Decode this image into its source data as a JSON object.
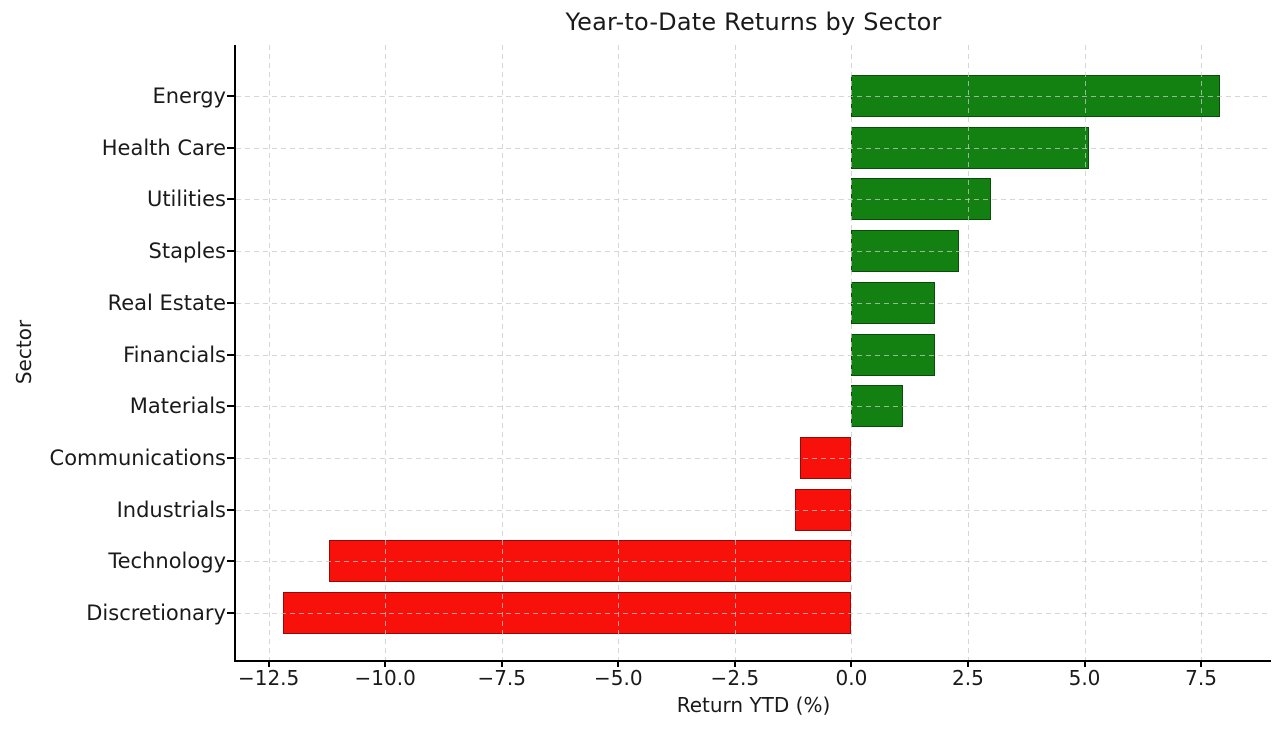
{
  "figure": {
    "title": "Year-to-Date Returns by Sector",
    "xlabel": "Return YTD (%)",
    "ylabel": "Sector"
  },
  "chart_data": {
    "type": "bar",
    "orientation": "horizontal",
    "title": "Year-to-Date Returns by Sector",
    "xlabel": "Return YTD (%)",
    "ylabel": "Sector",
    "categories": [
      "Energy",
      "Health Care",
      "Utilities",
      "Staples",
      "Real Estate",
      "Financials",
      "Materials",
      "Communications",
      "Industrials",
      "Technology",
      "Discretionary"
    ],
    "values": [
      7.9,
      5.1,
      3.0,
      2.3,
      1.8,
      1.8,
      1.1,
      -1.1,
      -1.2,
      -11.2,
      -12.2
    ],
    "xticks": [
      -12.5,
      -10.0,
      -7.5,
      -5.0,
      -2.5,
      0.0,
      2.5,
      5.0,
      7.5
    ],
    "xtick_labels": [
      "−12.5",
      "−10.0",
      "−7.5",
      "−5.0",
      "−2.5",
      "0.0",
      "2.5",
      "5.0",
      "7.5"
    ],
    "xlim": [
      -13.2,
      9.0
    ],
    "grid": true,
    "grid_style": "dashed",
    "legend": false,
    "colors": {
      "positive_bar": "#128112",
      "negative_bar": "#f8100a",
      "grid_line": "#c9c9c9",
      "axis": "#000000",
      "text": "#1a1a1a",
      "background": "#ffffff"
    }
  }
}
